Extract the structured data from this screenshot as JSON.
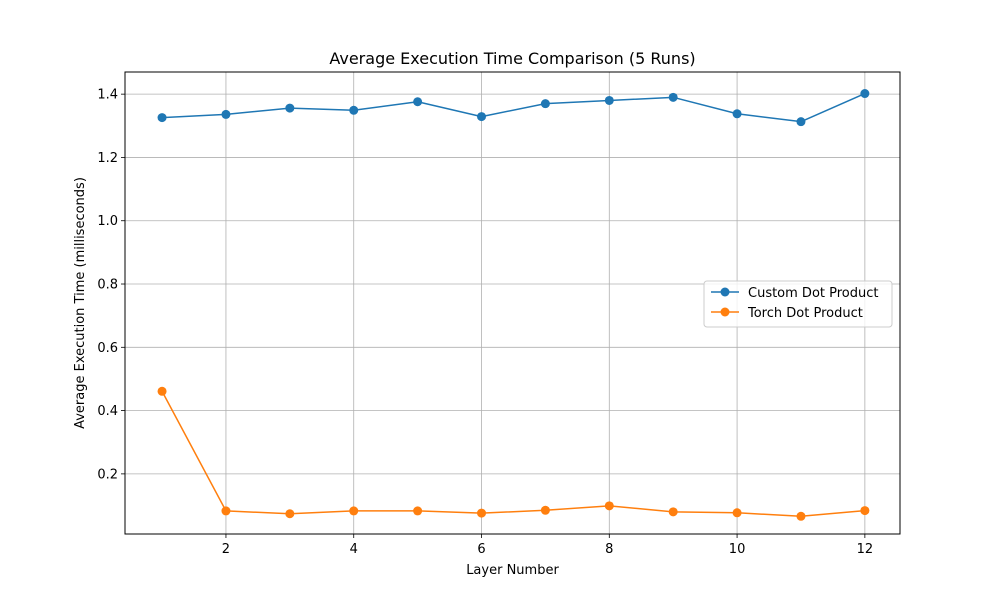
{
  "chart_data": {
    "type": "line",
    "title": "Average Execution Time Comparison (5 Runs)",
    "xlabel": "Layer Number",
    "ylabel": "Average Execution Time (milliseconds)",
    "x": [
      1,
      2,
      3,
      4,
      5,
      6,
      7,
      8,
      9,
      10,
      11,
      12
    ],
    "xlim": [
      0.42,
      12.55
    ],
    "ylim": [
      0.01,
      1.47
    ],
    "xticks": [
      2,
      4,
      6,
      8,
      10,
      12
    ],
    "yticks": [
      0.2,
      0.4,
      0.6,
      0.8,
      1.0,
      1.2,
      1.4
    ],
    "xtick_labels": [
      "2",
      "4",
      "6",
      "8",
      "10",
      "12"
    ],
    "ytick_labels": [
      "0.2",
      "0.4",
      "0.6",
      "0.8",
      "1.0",
      "1.2",
      "1.4"
    ],
    "grid": true,
    "legend_position": "center-right",
    "series": [
      {
        "name": "Custom Dot Product",
        "color": "#1f77b4",
        "marker": "circle",
        "values": [
          1.326,
          1.336,
          1.356,
          1.349,
          1.376,
          1.329,
          1.37,
          1.38,
          1.39,
          1.338,
          1.313,
          1.402
        ]
      },
      {
        "name": "Torch Dot Product",
        "color": "#ff7f0e",
        "marker": "circle",
        "values": [
          0.461,
          0.083,
          0.074,
          0.083,
          0.083,
          0.076,
          0.085,
          0.099,
          0.08,
          0.077,
          0.066,
          0.084
        ]
      }
    ]
  }
}
